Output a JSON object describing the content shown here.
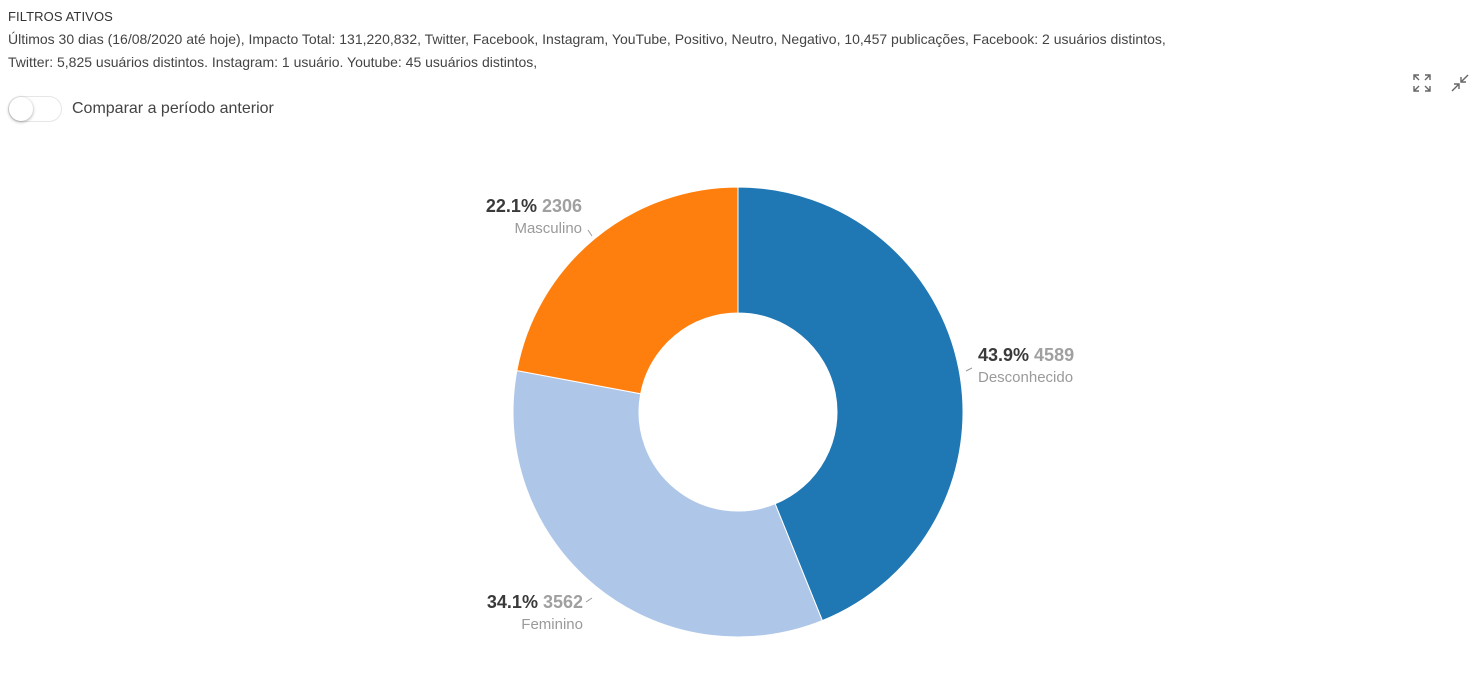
{
  "filters": {
    "title": "FILTROS ATIVOS",
    "line1": "Últimos 30 dias (16/08/2020 até hoje), Impacto Total: 131,220,832, Twitter, Facebook, Instagram, YouTube, Positivo, Neutro, Negativo, 10,457 publicações, Facebook: 2 usuários distintos,",
    "line2": "Twitter: 5,825 usuários distintos. Instagram: 1 usuário. Youtube: 45 usuários distintos,"
  },
  "toolbar": {
    "expand_icon": "expand-icon",
    "collapse_icon": "collapse-icon"
  },
  "compare_toggle": {
    "label": "Comparar a período anterior",
    "checked": false
  },
  "chart_data": {
    "type": "pie",
    "variant": "donut",
    "categories": [
      "Desconhecido",
      "Feminino",
      "Masculino"
    ],
    "values": [
      4589,
      3562,
      2306
    ],
    "percent_labels": [
      "43.9%",
      "34.1%",
      "22.1%"
    ],
    "colors": [
      "#1f77b4",
      "#aec7e8",
      "#ff7f0e"
    ],
    "start_angle_deg": 0,
    "direction": "clockwise",
    "legend": "none"
  }
}
